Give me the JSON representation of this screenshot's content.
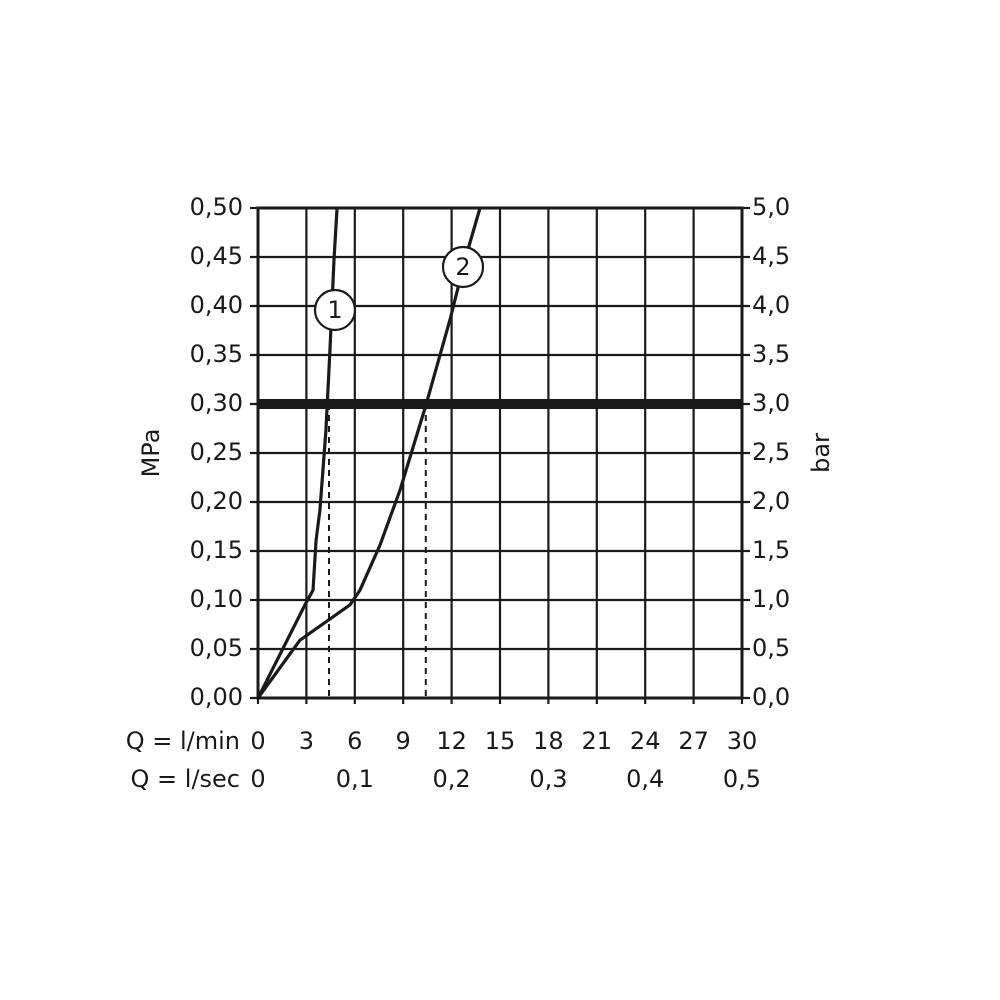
{
  "chart_data": {
    "type": "line",
    "xlabel": "Q = l/min",
    "x2label": "Q = l/sec",
    "ylabel": "MPa",
    "y2label": "bar",
    "xlim": [
      0,
      30
    ],
    "xticks": [
      0,
      3,
      6,
      9,
      12,
      15,
      18,
      21,
      24,
      27,
      30
    ],
    "x2lim": [
      0,
      0.5
    ],
    "x2ticks": [
      0,
      {
        "value": 0.1,
        "label": "0,1"
      },
      {
        "value": 0.2,
        "label": "0,2"
      },
      {
        "value": 0.3,
        "label": "0,3"
      },
      {
        "value": 0.4,
        "label": "0,4"
      },
      {
        "value": 0.5,
        "label": "0,5"
      }
    ],
    "ylim": [
      0,
      0.5
    ],
    "yticks": [
      {
        "value": 0,
        "label": "0,00"
      },
      {
        "value": 0.05,
        "label": "0,05"
      },
      {
        "value": 0.1,
        "label": "0,10"
      },
      {
        "value": 0.15,
        "label": "0,15"
      },
      {
        "value": 0.2,
        "label": "0,20"
      },
      {
        "value": 0.25,
        "label": "0,25"
      },
      {
        "value": 0.3,
        "label": "0,30"
      },
      {
        "value": 0.35,
        "label": "0,35"
      },
      {
        "value": 0.4,
        "label": "0,40"
      },
      {
        "value": 0.45,
        "label": "0,45"
      },
      {
        "value": 0.5,
        "label": "0,50"
      }
    ],
    "y2lim": [
      0,
      5
    ],
    "y2ticks": [
      {
        "value": 0,
        "label": "0,0"
      },
      {
        "value": 0.5,
        "label": "0,5"
      },
      {
        "value": 1,
        "label": "1,0"
      },
      {
        "value": 1.5,
        "label": "1,5"
      },
      {
        "value": 2,
        "label": "2,0"
      },
      {
        "value": 2.5,
        "label": "2,5"
      },
      {
        "value": 3,
        "label": "3,0"
      },
      {
        "value": 3.5,
        "label": "3,5"
      },
      {
        "value": 4,
        "label": "4,0"
      },
      {
        "value": 4.5,
        "label": "4,5"
      },
      {
        "value": 5,
        "label": "5,0"
      }
    ],
    "grid": true,
    "reference_y": 0.3,
    "dashed_x": [
      4.4,
      10.4
    ],
    "series": [
      {
        "name": "1",
        "color": "#1a1a1a",
        "x": [
          0,
          2.91,
          3.41,
          3.6,
          3.84,
          4.21,
          4.46,
          4.71,
          4.9
        ],
        "values": [
          0,
          0.095,
          0.11,
          0.161,
          0.192,
          0.273,
          0.355,
          0.447,
          0.5
        ]
      },
      {
        "name": "2",
        "color": "#1a1a1a",
        "x": [
          0,
          2.6,
          5.7,
          6.32,
          7.56,
          8.8,
          10.41,
          11.9,
          12.83,
          13.76
        ],
        "values": [
          0,
          0.059,
          0.095,
          0.11,
          0.156,
          0.212,
          0.299,
          0.386,
          0.447,
          0.5
        ]
      }
    ]
  }
}
